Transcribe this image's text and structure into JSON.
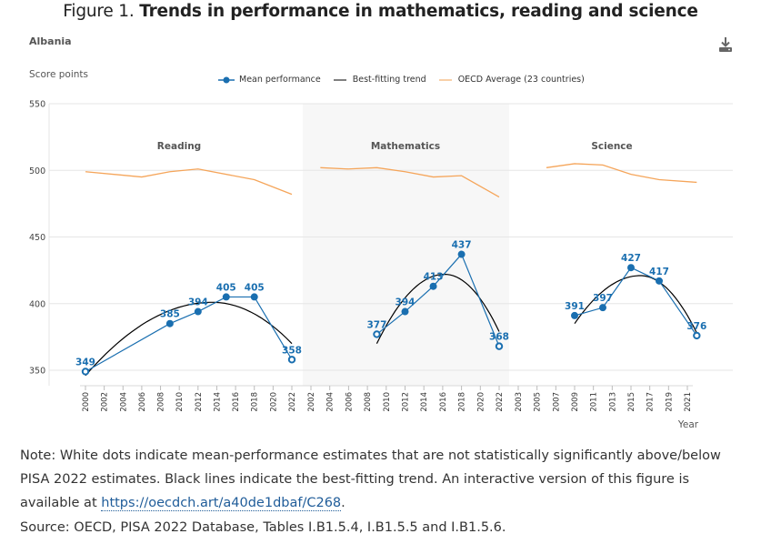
{
  "figure": {
    "title_prefix": "Figure 1. ",
    "title_bold": "Trends in performance in mathematics, reading and science"
  },
  "country": "Albania",
  "download_icon": "download-icon",
  "colors": {
    "mean": "#1a6fb0",
    "trend": "#000000",
    "oecd": "#f5a55a",
    "band": "#f7f7f7",
    "grid": "#e6e6e6"
  },
  "note": {
    "text": "Note: White dots indicate mean-performance estimates that are not statistically significantly above/below PISA 2022 estimates. Black lines indicate the best-fitting trend. An interactive version of this figure is available at ",
    "link": "https://oecdch.art/a40de1dbaf/C268",
    "suffix": "."
  },
  "source": "Source: OECD, PISA 2022 Database, Tables I.B1.5.4, I.B1.5.5 and I.B1.5.6.",
  "chart_data": {
    "type": "line",
    "title": "Trends in performance in mathematics, reading and science",
    "ylabel": "Score points",
    "xlabel": "Year",
    "ylim": [
      340,
      550
    ],
    "yticks": [
      350,
      400,
      450,
      500,
      550
    ],
    "grid": true,
    "legend_position": "top-center",
    "legend": [
      {
        "name": "Mean performance",
        "type": "line-marker"
      },
      {
        "name": "Best-fitting trend",
        "type": "line"
      },
      {
        "name": "OECD Average (23 countries)",
        "type": "line"
      }
    ],
    "panels": [
      {
        "name": "Reading",
        "shaded": false,
        "xticks": [
          "2000",
          "2002",
          "2004",
          "2006",
          "2008",
          "2010",
          "2012",
          "2014",
          "2016",
          "2018",
          "2020",
          "2022"
        ],
        "xrange": [
          2000,
          2022
        ],
        "mean": [
          {
            "year": 2000,
            "value": 349,
            "significant": false
          },
          {
            "year": 2009,
            "value": 385,
            "significant": true
          },
          {
            "year": 2012,
            "value": 394,
            "significant": true
          },
          {
            "year": 2015,
            "value": 405,
            "significant": true
          },
          {
            "year": 2018,
            "value": 405,
            "significant": true
          },
          {
            "year": 2022,
            "value": 358,
            "significant": false
          }
        ],
        "trend": {
          "x0": 2000,
          "x1": 2022,
          "peak_year": 2013.5,
          "peak_value": 401,
          "y_start": 346,
          "y_end": 370
        },
        "oecd": [
          {
            "year": 2000,
            "value": 499
          },
          {
            "year": 2006,
            "value": 495
          },
          {
            "year": 2009,
            "value": 499
          },
          {
            "year": 2012,
            "value": 501
          },
          {
            "year": 2018,
            "value": 493
          },
          {
            "year": 2022,
            "value": 482
          }
        ]
      },
      {
        "name": "Mathematics",
        "shaded": true,
        "xticks": [
          "2002",
          "2004",
          "2006",
          "2008",
          "2010",
          "2012",
          "2014",
          "2016",
          "2018",
          "2020",
          "2022"
        ],
        "xrange": [
          2002,
          2022
        ],
        "mean": [
          {
            "year": 2009,
            "value": 377,
            "significant": false
          },
          {
            "year": 2012,
            "value": 394,
            "significant": true
          },
          {
            "year": 2015,
            "value": 413,
            "significant": true
          },
          {
            "year": 2018,
            "value": 437,
            "significant": true
          },
          {
            "year": 2022,
            "value": 368,
            "significant": false
          }
        ],
        "trend": {
          "x0": 2009,
          "x1": 2022,
          "peak_year": 2016.2,
          "peak_value": 422,
          "y_start": 370,
          "y_end": 379
        },
        "oecd": [
          {
            "year": 2003,
            "value": 502
          },
          {
            "year": 2006,
            "value": 501
          },
          {
            "year": 2009,
            "value": 502
          },
          {
            "year": 2012,
            "value": 499
          },
          {
            "year": 2015,
            "value": 495
          },
          {
            "year": 2018,
            "value": 496
          },
          {
            "year": 2022,
            "value": 480
          }
        ]
      },
      {
        "name": "Science",
        "shaded": false,
        "xticks": [
          "2003",
          "2005",
          "2007",
          "2009",
          "2011",
          "2013",
          "2015",
          "2017",
          "2019",
          "2021"
        ],
        "xrange": [
          2003,
          2021
        ],
        "mean": [
          {
            "year": 2009,
            "value": 391,
            "significant": true
          },
          {
            "year": 2012,
            "value": 397,
            "significant": true
          },
          {
            "year": 2015,
            "value": 427,
            "significant": true
          },
          {
            "year": 2018,
            "value": 417,
            "significant": true
          },
          {
            "year": 2022,
            "value": 376,
            "significant": false
          }
        ],
        "trend": {
          "x0": 2009,
          "x1": 2022,
          "peak_year": 2016,
          "peak_value": 421,
          "y_start": 385,
          "y_end": 378
        },
        "oecd": [
          {
            "year": 2006,
            "value": 502
          },
          {
            "year": 2009,
            "value": 505
          },
          {
            "year": 2012,
            "value": 504
          },
          {
            "year": 2015,
            "value": 497
          },
          {
            "year": 2018,
            "value": 493
          },
          {
            "year": 2022,
            "value": 491
          }
        ]
      }
    ]
  }
}
